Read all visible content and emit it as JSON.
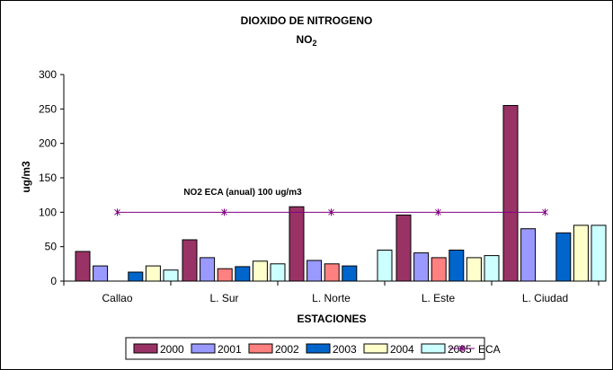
{
  "chart_data": {
    "type": "bar",
    "title": "DIOXIDO DE NITROGENO",
    "subtitle": "NO2",
    "subtitle_main": "NO",
    "subtitle_sub": "2",
    "xlabel": "ESTACIONES",
    "ylabel": "ug/m3",
    "ylim": [
      0,
      300
    ],
    "yticks": [
      "0",
      "50",
      "100",
      "150",
      "200",
      "250",
      "300"
    ],
    "ytick_values": [
      0,
      50,
      100,
      150,
      200,
      250,
      300
    ],
    "grid": false,
    "legend_position": "bottom",
    "categories": [
      "Callao",
      "L. Sur",
      "L. Norte",
      "L. Este",
      "L. Ciudad"
    ],
    "series": [
      {
        "name": "2000",
        "color": "#993366",
        "values": [
          43,
          60,
          108,
          96,
          255
        ]
      },
      {
        "name": "2001",
        "color": "#9999ff",
        "values": [
          22,
          34,
          30,
          41,
          76
        ]
      },
      {
        "name": "2002",
        "color": "#ff8080",
        "values": [
          null,
          18,
          25,
          34,
          null
        ]
      },
      {
        "name": "2003",
        "color": "#0066cc",
        "values": [
          13,
          21,
          22,
          45,
          70
        ]
      },
      {
        "name": "2004",
        "color": "#ffffcc",
        "values": [
          22,
          29,
          null,
          34,
          81
        ]
      },
      {
        "name": "2005",
        "color": "#ccffff",
        "values": [
          16,
          25,
          45,
          37,
          81
        ]
      }
    ],
    "reference_line": {
      "name": "ECA",
      "value": 100,
      "color": "#800080"
    },
    "annotation": "NO2 ECA (anual) 100 ug/m3"
  }
}
